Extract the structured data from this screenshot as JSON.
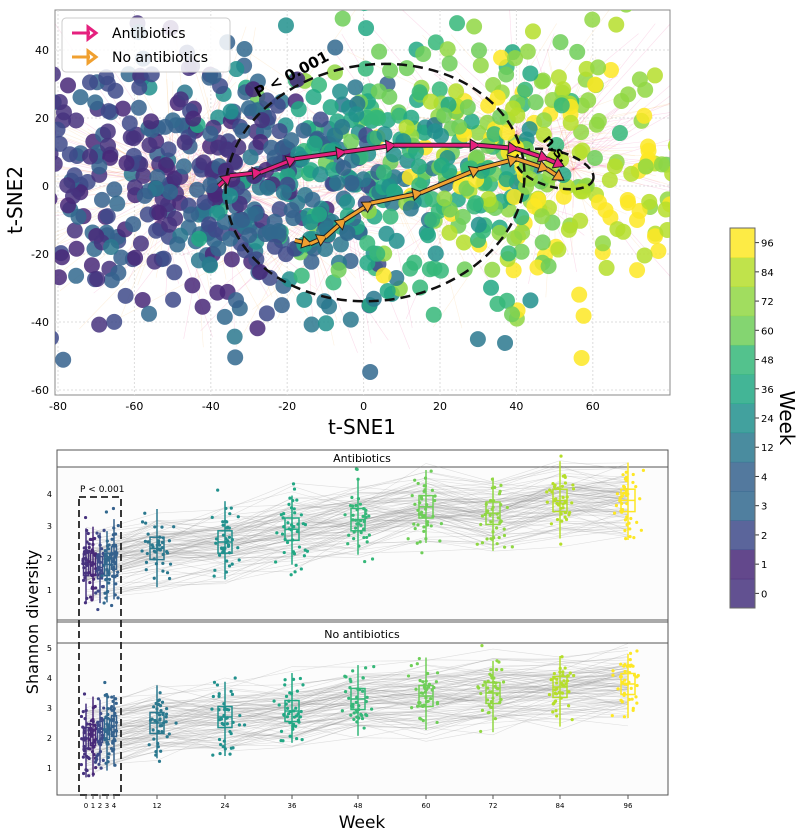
{
  "chart_data": [
    {
      "type": "scatter",
      "xlabel": "t-SNE1",
      "ylabel": "t-SNE2",
      "xlim": [
        -82,
        78
      ],
      "ylim": [
        -62,
        50
      ],
      "xticks": [
        -80,
        -60,
        -40,
        -20,
        0,
        20,
        40,
        60
      ],
      "yticks": [
        -60,
        -40,
        -20,
        0,
        20,
        40
      ],
      "grid": true,
      "legend": {
        "placement": "top-left",
        "entries": [
          {
            "name": "Antibiotics",
            "color": "#e5207e"
          },
          {
            "name": "No antibiotics",
            "color": "#f0a030"
          }
        ]
      },
      "annotations": [
        "P < 0.001",
        "n.s."
      ],
      "series": [
        {
          "name": "Antibiotics",
          "color": "#e5207e",
          "trajectory_x": [
            -38,
            -35,
            -27,
            -18,
            -5,
            8,
            30,
            40,
            48,
            52
          ],
          "trajectory_y": [
            0,
            3,
            4,
            8,
            10,
            12,
            12,
            11,
            8,
            6
          ]
        },
        {
          "name": "No antibiotics",
          "color": "#f0a030",
          "trajectory_x": [
            -18,
            -14,
            -10,
            -5,
            2,
            15,
            30,
            40,
            48,
            52
          ],
          "trajectory_y": [
            -16,
            -17,
            -15,
            -10,
            -5,
            -2,
            5,
            8,
            5,
            2
          ]
        }
      ],
      "colorbar": {
        "label": "Week",
        "ticks": [
          "0",
          "1",
          "2",
          "3",
          "4",
          "12",
          "24",
          "36",
          "48",
          "60",
          "72",
          "84",
          "96"
        ]
      }
    },
    {
      "type": "box",
      "xlabel": "Week",
      "ylabel": "Shannon diversity",
      "categories": [
        "0",
        "1",
        "2",
        "3",
        "4",
        "12",
        "24",
        "36",
        "48",
        "60",
        "72",
        "84",
        "96"
      ],
      "panels": [
        {
          "name": "Antibiotics",
          "yticks": [
            1,
            2,
            3,
            4
          ],
          "ylim": [
            0.2,
            5.0
          ],
          "medians": [
            1.8,
            1.8,
            1.7,
            1.8,
            2.0,
            2.3,
            2.5,
            2.9,
            3.2,
            3.6,
            3.4,
            3.8,
            3.8
          ],
          "annotation": "P < 0.001"
        },
        {
          "name": "No antibiotics",
          "yticks": [
            1,
            2,
            3,
            4,
            5
          ],
          "ylim": [
            0.2,
            5.3
          ],
          "medians": [
            2.0,
            2.1,
            2.2,
            2.3,
            2.4,
            2.5,
            2.7,
            2.9,
            3.3,
            3.4,
            3.5,
            3.7,
            3.8
          ]
        }
      ]
    }
  ]
}
